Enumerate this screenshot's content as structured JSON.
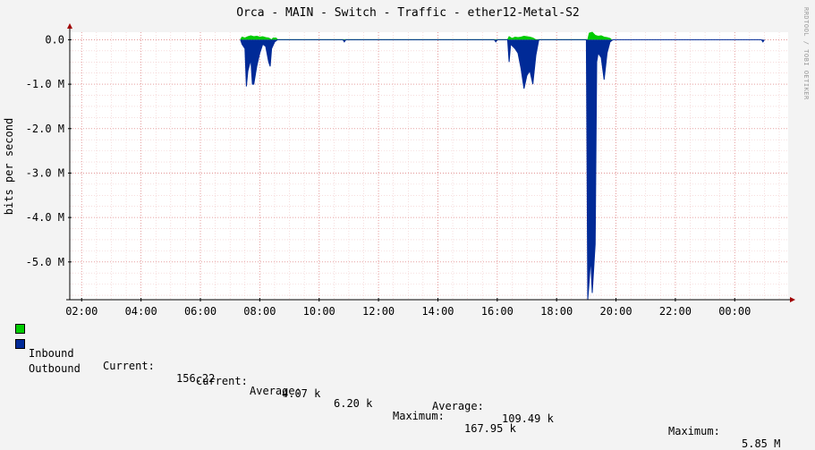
{
  "chart_data": {
    "type": "area",
    "title": "Orca - MAIN - Switch - Traffic - ether12-Metal-S2",
    "ylabel": "bits per second",
    "side_label": "RRDTOOL / TOBI OETIKER",
    "x_ticks": [
      "02:00",
      "04:00",
      "06:00",
      "08:00",
      "10:00",
      "12:00",
      "14:00",
      "16:00",
      "18:00",
      "20:00",
      "22:00",
      "00:00"
    ],
    "y_ticks": [
      "0.0",
      "-1.0 M",
      "-2.0 M",
      "-3.0 M",
      "-4.0 M",
      "-5.0 M"
    ],
    "y_tick_values": [
      0,
      -1000000,
      -2000000,
      -3000000,
      -4000000,
      -5000000
    ],
    "x_range_hours": [
      1.6,
      25.8
    ],
    "y_range": [
      -5850000,
      170000
    ],
    "grid": true,
    "series": [
      {
        "name": "Inbound",
        "color": "#00cc00",
        "points": [
          [
            7.35,
            0
          ],
          [
            7.4,
            60000
          ],
          [
            7.5,
            40000
          ],
          [
            7.6,
            70000
          ],
          [
            7.7,
            90000
          ],
          [
            7.8,
            70000
          ],
          [
            7.9,
            80000
          ],
          [
            8.0,
            60000
          ],
          [
            8.1,
            70000
          ],
          [
            8.2,
            50000
          ],
          [
            8.3,
            40000
          ],
          [
            8.4,
            0
          ],
          [
            8.45,
            40000
          ],
          [
            8.55,
            40000
          ],
          [
            8.6,
            0
          ],
          [
            16.35,
            0
          ],
          [
            16.4,
            70000
          ],
          [
            16.5,
            30000
          ],
          [
            16.6,
            60000
          ],
          [
            16.7,
            50000
          ],
          [
            16.8,
            60000
          ],
          [
            16.9,
            80000
          ],
          [
            17.0,
            70000
          ],
          [
            17.1,
            60000
          ],
          [
            17.2,
            40000
          ],
          [
            17.3,
            0
          ],
          [
            19.05,
            0
          ],
          [
            19.1,
            150000
          ],
          [
            19.2,
            167950
          ],
          [
            19.3,
            100000
          ],
          [
            19.4,
            80000
          ],
          [
            19.5,
            90000
          ],
          [
            19.6,
            60000
          ],
          [
            19.7,
            50000
          ],
          [
            19.8,
            30000
          ],
          [
            19.85,
            0
          ]
        ]
      },
      {
        "name": "Outbound",
        "color": "#002a97",
        "points": [
          [
            7.35,
            0
          ],
          [
            7.4,
            -100000
          ],
          [
            7.5,
            -200000
          ],
          [
            7.55,
            -1050000
          ],
          [
            7.6,
            -700000
          ],
          [
            7.7,
            -450000
          ],
          [
            7.75,
            -1000000
          ],
          [
            7.8,
            -1000000
          ],
          [
            7.9,
            -600000
          ],
          [
            8.0,
            -300000
          ],
          [
            8.1,
            -100000
          ],
          [
            8.2,
            -150000
          ],
          [
            8.3,
            -500000
          ],
          [
            8.35,
            -600000
          ],
          [
            8.4,
            -200000
          ],
          [
            8.5,
            -50000
          ],
          [
            8.6,
            0
          ],
          [
            10.8,
            0
          ],
          [
            10.85,
            -50000
          ],
          [
            10.9,
            0
          ],
          [
            15.9,
            0
          ],
          [
            15.95,
            -50000
          ],
          [
            16.0,
            0
          ],
          [
            16.35,
            0
          ],
          [
            16.4,
            -500000
          ],
          [
            16.45,
            -100000
          ],
          [
            16.6,
            -200000
          ],
          [
            16.7,
            -300000
          ],
          [
            16.8,
            -650000
          ],
          [
            16.9,
            -1100000
          ],
          [
            17.0,
            -800000
          ],
          [
            17.1,
            -700000
          ],
          [
            17.2,
            -1000000
          ],
          [
            17.3,
            -350000
          ],
          [
            17.4,
            0
          ],
          [
            19.0,
            0
          ],
          [
            19.05,
            -5850000
          ],
          [
            19.1,
            -5400000
          ],
          [
            19.15,
            -4900000
          ],
          [
            19.2,
            -5700000
          ],
          [
            19.3,
            -4600000
          ],
          [
            19.35,
            -500000
          ],
          [
            19.4,
            -300000
          ],
          [
            19.5,
            -400000
          ],
          [
            19.6,
            -900000
          ],
          [
            19.7,
            -300000
          ],
          [
            19.8,
            -50000
          ],
          [
            19.9,
            0
          ],
          [
            24.9,
            0
          ],
          [
            24.95,
            -50000
          ],
          [
            25.0,
            0
          ]
        ]
      }
    ]
  },
  "legend": [
    {
      "name": "Inbound",
      "color": "#00cc00",
      "current_label": "Current:",
      "current_value": "156.22",
      "average_label": "Average:",
      "average_value": "6.20 k",
      "maximum_label": "Maximum:",
      "maximum_value": "167.95 k"
    },
    {
      "name": "Outbound",
      "color": "#002a97",
      "current_label": "Current:",
      "current_value": "4.07 k",
      "average_label": "Average:",
      "average_value": "109.49 k",
      "maximum_label": "Maximum:",
      "maximum_value": "5.85 M"
    }
  ]
}
